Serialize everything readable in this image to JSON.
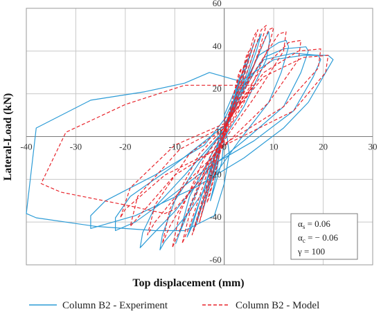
{
  "chart_data": {
    "type": "line",
    "xlabel": "Top displacement (mm)",
    "ylabel": "Lateral-Load (kN)",
    "xlim": [
      -40,
      30
    ],
    "ylim": [
      -60,
      60
    ],
    "x_ticks": [
      -40,
      -30,
      -20,
      -10,
      0,
      10,
      20,
      30
    ],
    "y_ticks": [
      -60,
      -40,
      -20,
      0,
      20,
      40,
      60
    ],
    "x_tick_labels": [
      "-40",
      "-30",
      "-20",
      "-10",
      "0",
      "10",
      "20",
      "30"
    ],
    "y_tick_labels": [
      "-60",
      "-40",
      "-20",
      "0",
      "20",
      "40",
      "60"
    ],
    "grid": true,
    "legend_position": "bottom",
    "annotation": {
      "lines": [
        {
          "sym": "α",
          "sub": "s",
          "rest": " = 0.06"
        },
        {
          "sym": "α",
          "sub": "c",
          "rest": " = − 0.06"
        },
        {
          "sym": "γ",
          "sub": "",
          "rest": " = 100"
        }
      ]
    },
    "series": [
      {
        "name": "Column B2 - Experiment",
        "color": "#2b9bd6",
        "style": "solid",
        "loops": [
          [
            [
              0,
              0
            ],
            [
              1.2,
              10
            ],
            [
              2.2,
              20
            ],
            [
              3,
              27
            ],
            [
              3.5,
              29
            ],
            [
              2.5,
              22
            ],
            [
              1,
              10
            ],
            [
              -0.5,
              0
            ],
            [
              -1.2,
              -12
            ],
            [
              -2,
              -22
            ],
            [
              -2.8,
              -30
            ],
            [
              -2,
              -24
            ],
            [
              -0.5,
              -12
            ],
            [
              0,
              0
            ]
          ],
          [
            [
              0,
              3
            ],
            [
              2.5,
              20
            ],
            [
              4,
              33
            ],
            [
              4.5,
              36
            ],
            [
              3.5,
              28
            ],
            [
              1.5,
              14
            ],
            [
              -0.5,
              0
            ],
            [
              -2.5,
              -20
            ],
            [
              -4,
              -32
            ],
            [
              -4.5,
              -36
            ],
            [
              -3.5,
              -28
            ],
            [
              -1.5,
              -12
            ],
            [
              0,
              3
            ]
          ],
          [
            [
              0,
              3
            ],
            [
              3,
              22
            ],
            [
              5.5,
              40
            ],
            [
              6.2,
              45
            ],
            [
              5,
              37
            ],
            [
              2.5,
              18
            ],
            [
              -1,
              0
            ],
            [
              -3.5,
              -25
            ],
            [
              -5.5,
              -40
            ],
            [
              -6.3,
              -44
            ],
            [
              -5,
              -35
            ],
            [
              -2,
              -14
            ],
            [
              0,
              3
            ]
          ],
          [
            [
              0,
              2
            ],
            [
              3.5,
              22
            ],
            [
              6.5,
              43
            ],
            [
              7.5,
              48
            ],
            [
              6.5,
              40
            ],
            [
              3,
              17
            ],
            [
              -1,
              -2
            ],
            [
              -4.5,
              -27
            ],
            [
              -6.5,
              -42
            ],
            [
              -7.5,
              -47
            ],
            [
              -6,
              -37
            ],
            [
              -2.5,
              -14
            ],
            [
              0,
              2
            ]
          ],
          [
            [
              0,
              2
            ],
            [
              4,
              22
            ],
            [
              8.5,
              47
            ],
            [
              9,
              49
            ],
            [
              9.2,
              45
            ],
            [
              8.5,
              36
            ],
            [
              4,
              14
            ],
            [
              -2,
              -8
            ],
            [
              -6,
              -28
            ],
            [
              -9,
              -45
            ],
            [
              -9.8,
              -50
            ],
            [
              -9,
              -45
            ],
            [
              -7,
              -28
            ],
            [
              -2,
              -6
            ],
            [
              0,
              2
            ]
          ],
          [
            [
              0,
              3
            ],
            [
              3,
              20
            ],
            [
              7,
              38
            ],
            [
              11,
              44
            ],
            [
              12.5,
              45
            ],
            [
              13,
              42
            ],
            [
              11.5,
              30
            ],
            [
              9,
              16
            ],
            [
              3,
              -2
            ],
            [
              -1,
              -15
            ],
            [
              -7,
              -35
            ],
            [
              -12,
              -49
            ],
            [
              -13,
              -53
            ],
            [
              -12.5,
              -46
            ],
            [
              -10,
              -30
            ],
            [
              -5,
              -12
            ],
            [
              0,
              3
            ]
          ],
          [
            [
              0,
              3
            ],
            [
              4,
              22
            ],
            [
              8,
              37
            ],
            [
              12,
              41
            ],
            [
              16.5,
              42
            ],
            [
              17,
              40
            ],
            [
              15.5,
              30
            ],
            [
              12,
              14
            ],
            [
              5,
              0
            ],
            [
              -3,
              -15
            ],
            [
              -10,
              -35
            ],
            [
              -15,
              -47
            ],
            [
              -17,
              -52
            ],
            [
              -16.5,
              -45
            ],
            [
              -14,
              -33
            ],
            [
              -8,
              -18
            ],
            [
              0,
              3
            ]
          ],
          [
            [
              0,
              5
            ],
            [
              4,
              24
            ],
            [
              8,
              36
            ],
            [
              14,
              39
            ],
            [
              19,
              38
            ],
            [
              19.5,
              36
            ],
            [
              18,
              28
            ],
            [
              14,
              12
            ],
            [
              6,
              -2
            ],
            [
              -3,
              -14
            ],
            [
              -12,
              -30
            ],
            [
              -18,
              -40
            ],
            [
              -22,
              -44
            ],
            [
              -22,
              -38
            ],
            [
              -19,
              -28
            ],
            [
              -11,
              -15
            ],
            [
              0,
              5
            ]
          ],
          [
            [
              0,
              8
            ],
            [
              4,
              27
            ],
            [
              10,
              36
            ],
            [
              16,
              38
            ],
            [
              21,
              38
            ],
            [
              22,
              36
            ],
            [
              20.5,
              30
            ],
            [
              17,
              16
            ],
            [
              12,
              4
            ],
            [
              4,
              -10
            ],
            [
              -6,
              -24
            ],
            [
              -18,
              -37
            ],
            [
              -27,
              -43
            ],
            [
              -27,
              -37
            ],
            [
              -24,
              -30
            ],
            [
              -14,
              -18
            ],
            [
              -4,
              -4
            ],
            [
              0,
              8
            ]
          ],
          [
            [
              0,
              10
            ],
            [
              3,
              26
            ],
            [
              -3,
              30
            ],
            [
              -8,
              25
            ],
            [
              -16,
              21
            ],
            [
              -27,
              17
            ],
            [
              -38,
              4
            ],
            [
              -40,
              -36
            ],
            [
              -38,
              -38
            ],
            [
              -26,
              -42
            ],
            [
              -14,
              -44
            ],
            [
              -8,
              -44
            ],
            [
              -2,
              -37
            ],
            [
              0,
              -22
            ],
            [
              1,
              -8
            ],
            [
              0,
              10
            ]
          ]
        ]
      },
      {
        "name": "Column B2 - Model",
        "color": "#e8232a",
        "style": "dashed",
        "loops": [
          [
            [
              0,
              0
            ],
            [
              1.5,
              16
            ],
            [
              3,
              30
            ],
            [
              3.5,
              32
            ],
            [
              2,
              20
            ],
            [
              0,
              2
            ],
            [
              -1.5,
              -14
            ],
            [
              -3,
              -28
            ],
            [
              -3.5,
              -31
            ],
            [
              -2,
              -18
            ],
            [
              0,
              0
            ]
          ],
          [
            [
              0,
              2
            ],
            [
              2.5,
              20
            ],
            [
              4.5,
              38
            ],
            [
              5,
              40
            ],
            [
              3.5,
              28
            ],
            [
              1,
              8
            ],
            [
              -2,
              -14
            ],
            [
              -4.5,
              -36
            ],
            [
              -5,
              -40
            ],
            [
              -3.5,
              -26
            ],
            [
              -1,
              -6
            ],
            [
              0,
              2
            ]
          ],
          [
            [
              0,
              3
            ],
            [
              3,
              22
            ],
            [
              6,
              47
            ],
            [
              6.8,
              50
            ],
            [
              5,
              36
            ],
            [
              2,
              12
            ],
            [
              -2,
              -12
            ],
            [
              -5.5,
              -40
            ],
            [
              -6.5,
              -46
            ],
            [
              -5,
              -34
            ],
            [
              -2,
              -10
            ],
            [
              0,
              3
            ]
          ],
          [
            [
              0,
              3
            ],
            [
              4,
              26
            ],
            [
              7.5,
              50
            ],
            [
              8.5,
              52
            ],
            [
              7,
              40
            ],
            [
              3,
              14
            ],
            [
              -3,
              -14
            ],
            [
              -7,
              -42
            ],
            [
              -8.5,
              -50
            ],
            [
              -7,
              -36
            ],
            [
              -3,
              -10
            ],
            [
              0,
              3
            ]
          ],
          [
            [
              0,
              3
            ],
            [
              5,
              28
            ],
            [
              9,
              50
            ],
            [
              10,
              51
            ],
            [
              9,
              42
            ],
            [
              4,
              16
            ],
            [
              -4,
              -16
            ],
            [
              -9,
              -44
            ],
            [
              -10.5,
              -52
            ],
            [
              -9,
              -36
            ],
            [
              -4,
              -10
            ],
            [
              0,
              3
            ]
          ],
          [
            [
              0,
              4
            ],
            [
              6,
              30
            ],
            [
              11,
              48
            ],
            [
              12.5,
              49
            ],
            [
              12,
              40
            ],
            [
              6,
              18
            ],
            [
              -5,
              -18
            ],
            [
              -11,
              -42
            ],
            [
              -12.5,
              -50
            ],
            [
              -11,
              -34
            ],
            [
              -5,
              -8
            ],
            [
              0,
              4
            ]
          ],
          [
            [
              0,
              4
            ],
            [
              7,
              30
            ],
            [
              13,
              44
            ],
            [
              15.5,
              45
            ],
            [
              15,
              36
            ],
            [
              9,
              16
            ],
            [
              -7,
              -20
            ],
            [
              -14,
              -40
            ],
            [
              -15.5,
              -46
            ],
            [
              -14,
              -32
            ],
            [
              -7,
              -8
            ],
            [
              0,
              4
            ]
          ],
          [
            [
              0,
              5
            ],
            [
              8,
              30
            ],
            [
              15,
              40
            ],
            [
              19.5,
              41
            ],
            [
              19,
              32
            ],
            [
              12,
              14
            ],
            [
              -10,
              -18
            ],
            [
              -17.5,
              -38
            ],
            [
              -19,
              -42
            ],
            [
              -17.5,
              -28
            ],
            [
              -9,
              -6
            ],
            [
              0,
              5
            ]
          ],
          [
            [
              0,
              6
            ],
            [
              8,
              28
            ],
            [
              16,
              37
            ],
            [
              21,
              38
            ],
            [
              20.5,
              30
            ],
            [
              14,
              12
            ],
            [
              -12,
              -18
            ],
            [
              -20,
              -34
            ],
            [
              -21,
              -38
            ],
            [
              -19,
              -24
            ],
            [
              -10,
              -4
            ],
            [
              0,
              6
            ]
          ],
          [
            [
              0,
              8
            ],
            [
              6,
              24
            ],
            [
              -8,
              24
            ],
            [
              -20,
              15
            ],
            [
              -32,
              2
            ],
            [
              -37,
              -22
            ],
            [
              -33,
              -26
            ],
            [
              -20,
              -32
            ],
            [
              -12,
              -36
            ],
            [
              -10,
              -34
            ],
            [
              -4,
              -18
            ],
            [
              0,
              -4
            ],
            [
              0,
              8
            ]
          ]
        ]
      }
    ]
  }
}
